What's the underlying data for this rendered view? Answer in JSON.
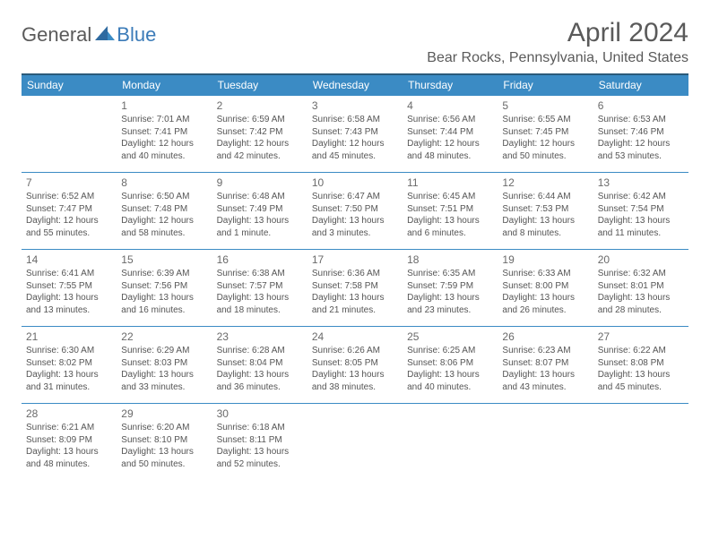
{
  "logo": {
    "general": "General",
    "blue": "Blue"
  },
  "title": "April 2024",
  "location": "Bear Rocks, Pennsylvania, United States",
  "colors": {
    "header_bg": "#3b8bc4",
    "header_border_top": "#2a5a7a",
    "cell_border": "#3b8bc4",
    "text": "#555555",
    "title_text": "#5a5a5a",
    "logo_blue": "#3b7bb8"
  },
  "weekdays": [
    "Sunday",
    "Monday",
    "Tuesday",
    "Wednesday",
    "Thursday",
    "Friday",
    "Saturday"
  ],
  "weeks": [
    [
      null,
      {
        "day": "1",
        "sunrise": "Sunrise: 7:01 AM",
        "sunset": "Sunset: 7:41 PM",
        "daylight": "Daylight: 12 hours and 40 minutes."
      },
      {
        "day": "2",
        "sunrise": "Sunrise: 6:59 AM",
        "sunset": "Sunset: 7:42 PM",
        "daylight": "Daylight: 12 hours and 42 minutes."
      },
      {
        "day": "3",
        "sunrise": "Sunrise: 6:58 AM",
        "sunset": "Sunset: 7:43 PM",
        "daylight": "Daylight: 12 hours and 45 minutes."
      },
      {
        "day": "4",
        "sunrise": "Sunrise: 6:56 AM",
        "sunset": "Sunset: 7:44 PM",
        "daylight": "Daylight: 12 hours and 48 minutes."
      },
      {
        "day": "5",
        "sunrise": "Sunrise: 6:55 AM",
        "sunset": "Sunset: 7:45 PM",
        "daylight": "Daylight: 12 hours and 50 minutes."
      },
      {
        "day": "6",
        "sunrise": "Sunrise: 6:53 AM",
        "sunset": "Sunset: 7:46 PM",
        "daylight": "Daylight: 12 hours and 53 minutes."
      }
    ],
    [
      {
        "day": "7",
        "sunrise": "Sunrise: 6:52 AM",
        "sunset": "Sunset: 7:47 PM",
        "daylight": "Daylight: 12 hours and 55 minutes."
      },
      {
        "day": "8",
        "sunrise": "Sunrise: 6:50 AM",
        "sunset": "Sunset: 7:48 PM",
        "daylight": "Daylight: 12 hours and 58 minutes."
      },
      {
        "day": "9",
        "sunrise": "Sunrise: 6:48 AM",
        "sunset": "Sunset: 7:49 PM",
        "daylight": "Daylight: 13 hours and 1 minute."
      },
      {
        "day": "10",
        "sunrise": "Sunrise: 6:47 AM",
        "sunset": "Sunset: 7:50 PM",
        "daylight": "Daylight: 13 hours and 3 minutes."
      },
      {
        "day": "11",
        "sunrise": "Sunrise: 6:45 AM",
        "sunset": "Sunset: 7:51 PM",
        "daylight": "Daylight: 13 hours and 6 minutes."
      },
      {
        "day": "12",
        "sunrise": "Sunrise: 6:44 AM",
        "sunset": "Sunset: 7:53 PM",
        "daylight": "Daylight: 13 hours and 8 minutes."
      },
      {
        "day": "13",
        "sunrise": "Sunrise: 6:42 AM",
        "sunset": "Sunset: 7:54 PM",
        "daylight": "Daylight: 13 hours and 11 minutes."
      }
    ],
    [
      {
        "day": "14",
        "sunrise": "Sunrise: 6:41 AM",
        "sunset": "Sunset: 7:55 PM",
        "daylight": "Daylight: 13 hours and 13 minutes."
      },
      {
        "day": "15",
        "sunrise": "Sunrise: 6:39 AM",
        "sunset": "Sunset: 7:56 PM",
        "daylight": "Daylight: 13 hours and 16 minutes."
      },
      {
        "day": "16",
        "sunrise": "Sunrise: 6:38 AM",
        "sunset": "Sunset: 7:57 PM",
        "daylight": "Daylight: 13 hours and 18 minutes."
      },
      {
        "day": "17",
        "sunrise": "Sunrise: 6:36 AM",
        "sunset": "Sunset: 7:58 PM",
        "daylight": "Daylight: 13 hours and 21 minutes."
      },
      {
        "day": "18",
        "sunrise": "Sunrise: 6:35 AM",
        "sunset": "Sunset: 7:59 PM",
        "daylight": "Daylight: 13 hours and 23 minutes."
      },
      {
        "day": "19",
        "sunrise": "Sunrise: 6:33 AM",
        "sunset": "Sunset: 8:00 PM",
        "daylight": "Daylight: 13 hours and 26 minutes."
      },
      {
        "day": "20",
        "sunrise": "Sunrise: 6:32 AM",
        "sunset": "Sunset: 8:01 PM",
        "daylight": "Daylight: 13 hours and 28 minutes."
      }
    ],
    [
      {
        "day": "21",
        "sunrise": "Sunrise: 6:30 AM",
        "sunset": "Sunset: 8:02 PM",
        "daylight": "Daylight: 13 hours and 31 minutes."
      },
      {
        "day": "22",
        "sunrise": "Sunrise: 6:29 AM",
        "sunset": "Sunset: 8:03 PM",
        "daylight": "Daylight: 13 hours and 33 minutes."
      },
      {
        "day": "23",
        "sunrise": "Sunrise: 6:28 AM",
        "sunset": "Sunset: 8:04 PM",
        "daylight": "Daylight: 13 hours and 36 minutes."
      },
      {
        "day": "24",
        "sunrise": "Sunrise: 6:26 AM",
        "sunset": "Sunset: 8:05 PM",
        "daylight": "Daylight: 13 hours and 38 minutes."
      },
      {
        "day": "25",
        "sunrise": "Sunrise: 6:25 AM",
        "sunset": "Sunset: 8:06 PM",
        "daylight": "Daylight: 13 hours and 40 minutes."
      },
      {
        "day": "26",
        "sunrise": "Sunrise: 6:23 AM",
        "sunset": "Sunset: 8:07 PM",
        "daylight": "Daylight: 13 hours and 43 minutes."
      },
      {
        "day": "27",
        "sunrise": "Sunrise: 6:22 AM",
        "sunset": "Sunset: 8:08 PM",
        "daylight": "Daylight: 13 hours and 45 minutes."
      }
    ],
    [
      {
        "day": "28",
        "sunrise": "Sunrise: 6:21 AM",
        "sunset": "Sunset: 8:09 PM",
        "daylight": "Daylight: 13 hours and 48 minutes."
      },
      {
        "day": "29",
        "sunrise": "Sunrise: 6:20 AM",
        "sunset": "Sunset: 8:10 PM",
        "daylight": "Daylight: 13 hours and 50 minutes."
      },
      {
        "day": "30",
        "sunrise": "Sunrise: 6:18 AM",
        "sunset": "Sunset: 8:11 PM",
        "daylight": "Daylight: 13 hours and 52 minutes."
      },
      null,
      null,
      null,
      null
    ]
  ]
}
